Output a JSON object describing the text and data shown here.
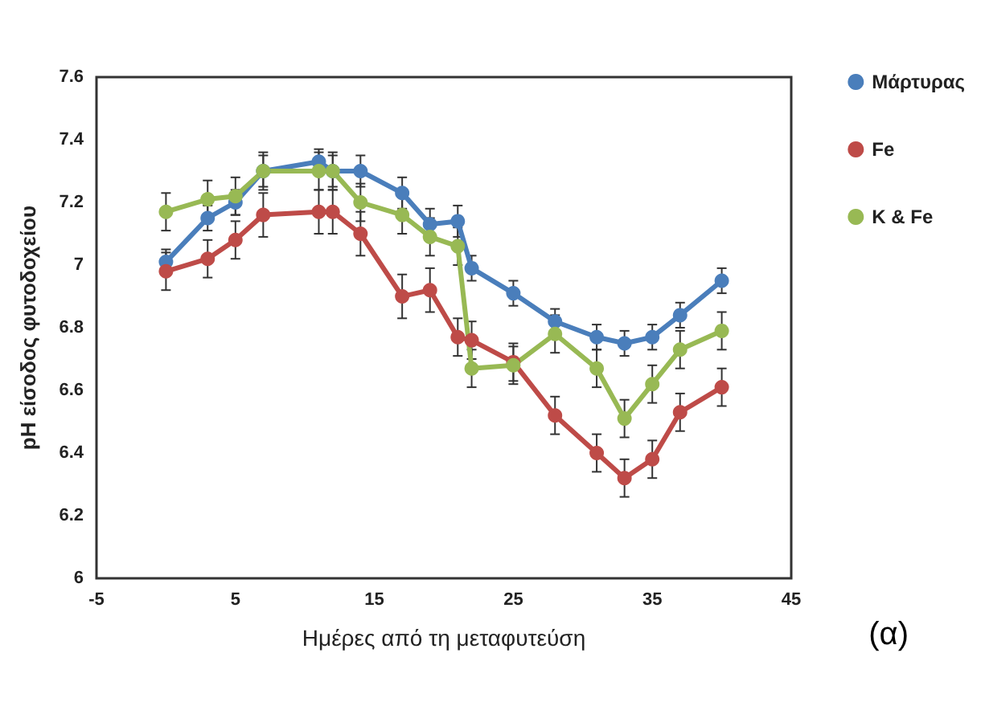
{
  "chart_data": {
    "type": "line",
    "xlabel": "Ημέρες από τη μεταφυτεύση",
    "ylabel": "pH είσοδος φυτοδοχείου",
    "x": [
      0,
      3,
      5,
      7,
      11,
      12,
      14,
      17,
      19,
      21,
      22,
      25,
      28,
      31,
      33,
      35,
      37,
      40
    ],
    "series": [
      {
        "name": "Μάρτυρας",
        "color": "#4a7ebb",
        "values": [
          7.01,
          7.15,
          7.2,
          7.3,
          7.33,
          7.3,
          7.3,
          7.23,
          7.13,
          7.14,
          6.99,
          6.91,
          6.82,
          6.77,
          6.75,
          6.77,
          6.84,
          6.95
        ],
        "errors": [
          0.04,
          0.04,
          0.04,
          0.05,
          0.04,
          0.05,
          0.05,
          0.05,
          0.05,
          0.05,
          0.04,
          0.04,
          0.04,
          0.04,
          0.04,
          0.04,
          0.04,
          0.04
        ]
      },
      {
        "name": "Fe",
        "color": "#be4b48",
        "values": [
          6.98,
          7.02,
          7.08,
          7.16,
          7.17,
          7.17,
          7.1,
          6.9,
          6.92,
          6.77,
          6.76,
          6.69,
          6.52,
          6.4,
          6.32,
          6.38,
          6.53,
          6.61
        ],
        "errors": [
          0.06,
          0.06,
          0.06,
          0.07,
          0.07,
          0.07,
          0.07,
          0.07,
          0.07,
          0.06,
          0.06,
          0.06,
          0.06,
          0.06,
          0.06,
          0.06,
          0.06,
          0.06
        ]
      },
      {
        "name": "K & Fe",
        "color": "#98b954",
        "values": [
          7.17,
          7.21,
          7.22,
          7.3,
          7.3,
          7.3,
          7.2,
          7.16,
          7.09,
          7.06,
          6.67,
          6.68,
          6.78,
          6.67,
          6.51,
          6.62,
          6.73,
          6.79
        ],
        "errors": [
          0.06,
          0.06,
          0.06,
          0.06,
          0.06,
          0.06,
          0.06,
          0.06,
          0.06,
          0.06,
          0.06,
          0.06,
          0.06,
          0.06,
          0.06,
          0.06,
          0.06,
          0.06
        ]
      }
    ],
    "xlim": [
      -5,
      45
    ],
    "xticks": [
      -5,
      5,
      15,
      25,
      35,
      45
    ],
    "ylim": [
      6,
      7.6
    ],
    "yticks": [
      6,
      6.2,
      6.4,
      6.6,
      6.8,
      7,
      7.2,
      7.4,
      7.6
    ],
    "grid": false,
    "legend": "right",
    "marker": "circle",
    "line_style": "solid",
    "annotations": [
      "(α)"
    ]
  }
}
